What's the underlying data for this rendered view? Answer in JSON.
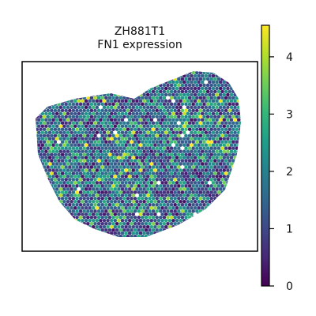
{
  "chart_data": {
    "type": "heatmap",
    "title": [
      "ZH881T1",
      "FN1 expression"
    ],
    "xlabel": "",
    "ylabel": "",
    "axes_ticks": "none",
    "grid": false,
    "colorbar": {
      "colormap": "viridis",
      "range": [
        0,
        4.55
      ],
      "ticks": [
        0,
        1,
        2,
        3,
        4
      ],
      "tick_labels": [
        "0",
        "1",
        "2",
        "3",
        "4"
      ],
      "placement": "right"
    },
    "description_of_values": "spatial spots colored by FN1 expression level; most spots in the 0.5–2.5 range with scattered high (3.5–4.5) spots",
    "value_distribution": {
      "min": 0,
      "max": 4.55,
      "typical": 1.5
    }
  },
  "colors": {
    "viridis": [
      "#440154",
      "#482878",
      "#3e4989",
      "#31688e",
      "#26828e",
      "#1f9e89",
      "#35b779",
      "#6ece58",
      "#b5de2b",
      "#fde725"
    ],
    "frame": "#000000",
    "background": "#ffffff"
  }
}
